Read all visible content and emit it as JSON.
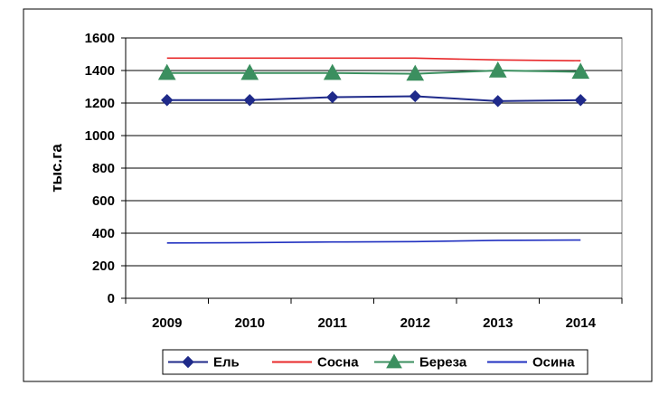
{
  "chart_data": {
    "type": "line",
    "title": "",
    "xlabel": "",
    "ylabel": "тыс.га",
    "categories": [
      "2009",
      "2010",
      "2011",
      "2012",
      "2013",
      "2014"
    ],
    "ylim": [
      0,
      1600
    ],
    "yticks": [
      0,
      200,
      400,
      600,
      800,
      1000,
      1200,
      1400,
      1600
    ],
    "grid": "horizontal",
    "legend_position": "bottom",
    "series": [
      {
        "name": "Ель",
        "values": [
          1218,
          1218,
          1236,
          1242,
          1212,
          1218
        ],
        "color": "#1f2a8a",
        "marker": "diamond"
      },
      {
        "name": "Сосна",
        "values": [
          1476,
          1476,
          1476,
          1476,
          1465,
          1460
        ],
        "color": "#e8282a",
        "marker": "none"
      },
      {
        "name": "Береза",
        "values": [
          1385,
          1385,
          1385,
          1380,
          1400,
          1392
        ],
        "color": "#3b8f5f",
        "marker": "triangle"
      },
      {
        "name": "Осина",
        "values": [
          340,
          342,
          346,
          348,
          356,
          358
        ],
        "color": "#2030c0",
        "marker": "none"
      }
    ]
  }
}
